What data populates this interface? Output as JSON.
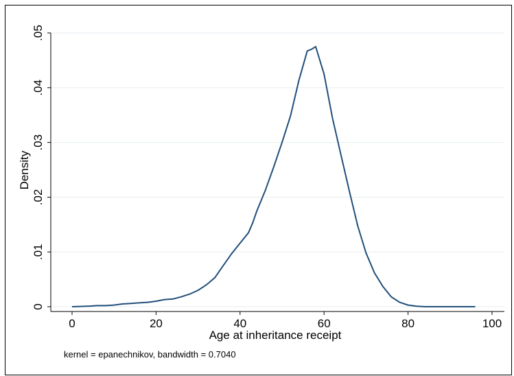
{
  "chart_data": {
    "type": "line",
    "title": "",
    "xlabel": "Age at inheritance receipt",
    "ylabel": "Density",
    "note": "kernel = epanechnikov, bandwidth = 0.7040",
    "xlim": [
      0,
      100
    ],
    "ylim": [
      0,
      0.05
    ],
    "x_ticks": [
      0,
      20,
      40,
      60,
      80,
      100
    ],
    "x_tick_labels": [
      "0",
      "20",
      "40",
      "60",
      "80",
      "100"
    ],
    "y_ticks": [
      0,
      0.01,
      0.02,
      0.03,
      0.04,
      0.05
    ],
    "y_tick_labels": [
      "0",
      ".01",
      ".02",
      ".03",
      ".04",
      ".05"
    ],
    "grid": true,
    "line_color": "#1f4e79",
    "grid_color": "#e6eef0",
    "series": [
      {
        "x": [
          0,
          2,
          4,
          6,
          8,
          10,
          12,
          14,
          16,
          18,
          20,
          22,
          24,
          26,
          28,
          30,
          32,
          34,
          36,
          38,
          40,
          42,
          43,
          44,
          46,
          48,
          50,
          52,
          54,
          56,
          57,
          58,
          60,
          62,
          64,
          66,
          68,
          70,
          72,
          74,
          76,
          78,
          80,
          82,
          84,
          86,
          90,
          96
        ],
        "y": [
          0.0,
          5e-05,
          0.0001,
          0.0002,
          0.0002,
          0.0003,
          0.0005,
          0.0006,
          0.0007,
          0.0008,
          0.001,
          0.0013,
          0.0014,
          0.0018,
          0.0023,
          0.003,
          0.004,
          0.0053,
          0.0075,
          0.0097,
          0.0116,
          0.0135,
          0.0153,
          0.0175,
          0.0212,
          0.0255,
          0.03,
          0.0348,
          0.0413,
          0.0467,
          0.047,
          0.0475,
          0.0425,
          0.0345,
          0.0278,
          0.0212,
          0.0148,
          0.0098,
          0.0062,
          0.0037,
          0.0018,
          0.0008,
          0.0003,
          0.0001,
          0.0,
          0.0,
          0.0,
          0.0
        ]
      }
    ]
  }
}
